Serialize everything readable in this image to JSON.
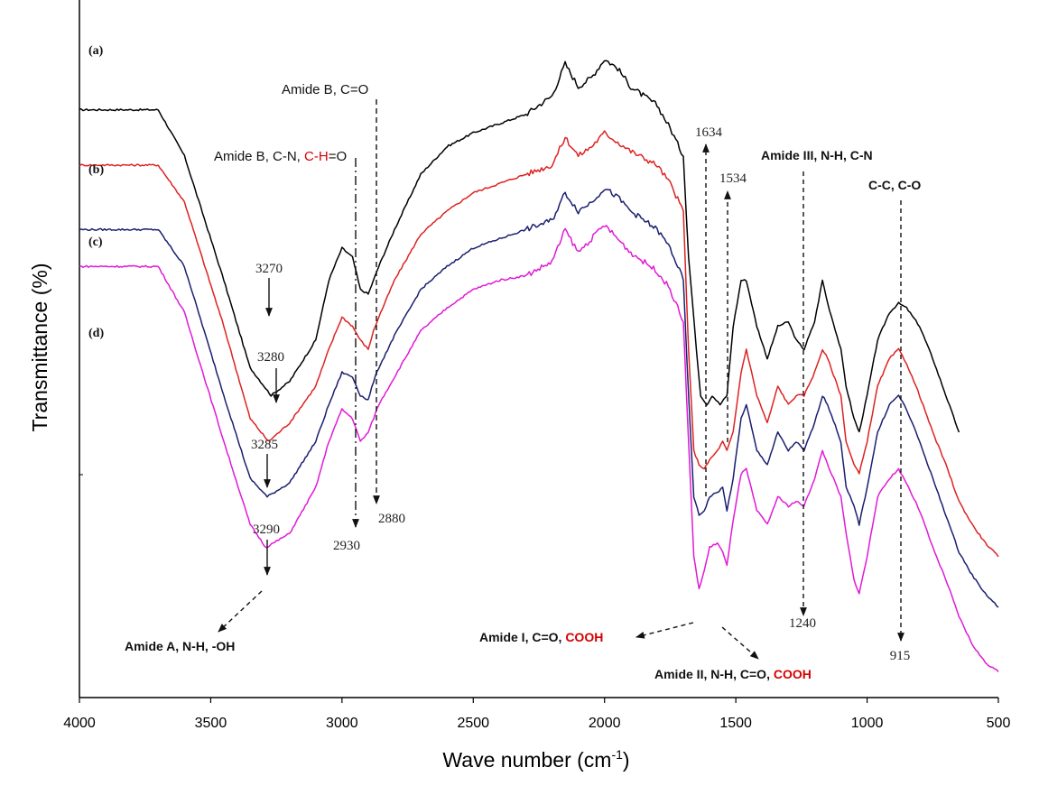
{
  "chart_data": {
    "type": "line",
    "xlabel": "Wave number (cm",
    "xlabel_sup": "-1",
    "xlabel_close": ")",
    "ylabel": "Transmittance (%)",
    "xlim": [
      4000,
      500
    ],
    "x_reversed": true,
    "xticks": [
      "4000",
      "3500",
      "3000",
      "2500",
      "2000",
      "1500",
      "1000",
      "500"
    ],
    "xtick_values": [
      4000,
      3500,
      3000,
      2500,
      2000,
      1500,
      1000,
      500
    ],
    "grid": false,
    "series": [
      {
        "name": "(a)",
        "color": "#000000",
        "x_range": [
          4000,
          650
        ],
        "points": [
          [
            4000,
            0.92
          ],
          [
            3700,
            0.92
          ],
          [
            3600,
            0.82
          ],
          [
            3450,
            0.55
          ],
          [
            3350,
            0.36
          ],
          [
            3270,
            0.3
          ],
          [
            3200,
            0.33
          ],
          [
            3100,
            0.42
          ],
          [
            3050,
            0.55
          ],
          [
            3000,
            0.62
          ],
          [
            2960,
            0.6
          ],
          [
            2930,
            0.53
          ],
          [
            2900,
            0.52
          ],
          [
            2880,
            0.55
          ],
          [
            2860,
            0.58
          ],
          [
            2800,
            0.66
          ],
          [
            2700,
            0.78
          ],
          [
            2600,
            0.84
          ],
          [
            2500,
            0.87
          ],
          [
            2400,
            0.89
          ],
          [
            2300,
            0.91
          ],
          [
            2200,
            0.95
          ],
          [
            2150,
            1.02
          ],
          [
            2100,
            0.97
          ],
          [
            2050,
            0.99
          ],
          [
            2000,
            1.03
          ],
          [
            1950,
            1.01
          ],
          [
            1900,
            0.97
          ],
          [
            1800,
            0.93
          ],
          [
            1750,
            0.88
          ],
          [
            1700,
            0.82
          ],
          [
            1680,
            0.6
          ],
          [
            1650,
            0.4
          ],
          [
            1634,
            0.3
          ],
          [
            1610,
            0.28
          ],
          [
            1590,
            0.3
          ],
          [
            1560,
            0.28
          ],
          [
            1534,
            0.3
          ],
          [
            1510,
            0.45
          ],
          [
            1480,
            0.55
          ],
          [
            1460,
            0.55
          ],
          [
            1420,
            0.45
          ],
          [
            1380,
            0.38
          ],
          [
            1340,
            0.45
          ],
          [
            1300,
            0.46
          ],
          [
            1270,
            0.42
          ],
          [
            1240,
            0.4
          ],
          [
            1200,
            0.46
          ],
          [
            1170,
            0.55
          ],
          [
            1150,
            0.5
          ],
          [
            1100,
            0.4
          ],
          [
            1080,
            0.32
          ],
          [
            1050,
            0.25
          ],
          [
            1030,
            0.22
          ],
          [
            1000,
            0.3
          ],
          [
            960,
            0.42
          ],
          [
            915,
            0.48
          ],
          [
            880,
            0.5
          ],
          [
            850,
            0.49
          ],
          [
            800,
            0.45
          ],
          [
            750,
            0.38
          ],
          [
            700,
            0.3
          ],
          [
            650,
            0.22
          ]
        ]
      },
      {
        "name": "(b)",
        "color": "#dd2222",
        "x_range": [
          4000,
          500
        ],
        "points": [
          [
            4000,
            0.8
          ],
          [
            3700,
            0.8
          ],
          [
            3600,
            0.72
          ],
          [
            3450,
            0.45
          ],
          [
            3350,
            0.25
          ],
          [
            3280,
            0.2
          ],
          [
            3200,
            0.24
          ],
          [
            3100,
            0.32
          ],
          [
            3050,
            0.4
          ],
          [
            3000,
            0.47
          ],
          [
            2960,
            0.45
          ],
          [
            2930,
            0.42
          ],
          [
            2900,
            0.4
          ],
          [
            2880,
            0.44
          ],
          [
            2860,
            0.47
          ],
          [
            2800,
            0.55
          ],
          [
            2700,
            0.65
          ],
          [
            2600,
            0.7
          ],
          [
            2500,
            0.74
          ],
          [
            2400,
            0.76
          ],
          [
            2300,
            0.78
          ],
          [
            2200,
            0.8
          ],
          [
            2150,
            0.86
          ],
          [
            2100,
            0.82
          ],
          [
            2050,
            0.84
          ],
          [
            2000,
            0.87
          ],
          [
            1950,
            0.85
          ],
          [
            1900,
            0.83
          ],
          [
            1800,
            0.8
          ],
          [
            1750,
            0.76
          ],
          [
            1700,
            0.7
          ],
          [
            1680,
            0.4
          ],
          [
            1660,
            0.18
          ],
          [
            1640,
            0.15
          ],
          [
            1620,
            0.14
          ],
          [
            1600,
            0.16
          ],
          [
            1570,
            0.18
          ],
          [
            1550,
            0.2
          ],
          [
            1534,
            0.18
          ],
          [
            1510,
            0.22
          ],
          [
            1480,
            0.35
          ],
          [
            1460,
            0.4
          ],
          [
            1420,
            0.3
          ],
          [
            1380,
            0.24
          ],
          [
            1340,
            0.32
          ],
          [
            1300,
            0.28
          ],
          [
            1270,
            0.3
          ],
          [
            1240,
            0.3
          ],
          [
            1200,
            0.35
          ],
          [
            1170,
            0.4
          ],
          [
            1150,
            0.38
          ],
          [
            1100,
            0.3
          ],
          [
            1080,
            0.2
          ],
          [
            1050,
            0.15
          ],
          [
            1030,
            0.13
          ],
          [
            1000,
            0.2
          ],
          [
            960,
            0.32
          ],
          [
            915,
            0.38
          ],
          [
            880,
            0.4
          ],
          [
            850,
            0.37
          ],
          [
            800,
            0.3
          ],
          [
            750,
            0.22
          ],
          [
            700,
            0.15
          ],
          [
            650,
            0.07
          ],
          [
            600,
            0.02
          ],
          [
            550,
            -0.02
          ],
          [
            500,
            -0.05
          ]
        ]
      },
      {
        "name": "(c)",
        "color": "#1a1f6e",
        "x_range": [
          4000,
          500
        ],
        "points": [
          [
            4000,
            0.66
          ],
          [
            3700,
            0.66
          ],
          [
            3600,
            0.58
          ],
          [
            3450,
            0.3
          ],
          [
            3350,
            0.12
          ],
          [
            3285,
            0.08
          ],
          [
            3200,
            0.11
          ],
          [
            3100,
            0.2
          ],
          [
            3050,
            0.28
          ],
          [
            3000,
            0.35
          ],
          [
            2960,
            0.34
          ],
          [
            2930,
            0.3
          ],
          [
            2900,
            0.29
          ],
          [
            2880,
            0.33
          ],
          [
            2860,
            0.36
          ],
          [
            2800,
            0.43
          ],
          [
            2700,
            0.53
          ],
          [
            2600,
            0.58
          ],
          [
            2500,
            0.62
          ],
          [
            2400,
            0.64
          ],
          [
            2300,
            0.66
          ],
          [
            2200,
            0.68
          ],
          [
            2150,
            0.74
          ],
          [
            2100,
            0.7
          ],
          [
            2050,
            0.72
          ],
          [
            2000,
            0.75
          ],
          [
            1950,
            0.73
          ],
          [
            1900,
            0.7
          ],
          [
            1800,
            0.66
          ],
          [
            1750,
            0.62
          ],
          [
            1700,
            0.55
          ],
          [
            1680,
            0.3
          ],
          [
            1660,
            0.08
          ],
          [
            1640,
            0.04
          ],
          [
            1620,
            0.05
          ],
          [
            1600,
            0.08
          ],
          [
            1570,
            0.09
          ],
          [
            1550,
            0.1
          ],
          [
            1534,
            0.05
          ],
          [
            1510,
            0.12
          ],
          [
            1480,
            0.25
          ],
          [
            1460,
            0.28
          ],
          [
            1420,
            0.18
          ],
          [
            1380,
            0.15
          ],
          [
            1340,
            0.22
          ],
          [
            1300,
            0.18
          ],
          [
            1270,
            0.2
          ],
          [
            1240,
            0.18
          ],
          [
            1200,
            0.24
          ],
          [
            1170,
            0.3
          ],
          [
            1150,
            0.28
          ],
          [
            1100,
            0.2
          ],
          [
            1080,
            0.1
          ],
          [
            1050,
            0.06
          ],
          [
            1030,
            0.02
          ],
          [
            1000,
            0.1
          ],
          [
            960,
            0.22
          ],
          [
            915,
            0.28
          ],
          [
            880,
            0.3
          ],
          [
            850,
            0.27
          ],
          [
            800,
            0.2
          ],
          [
            750,
            0.12
          ],
          [
            700,
            0.04
          ],
          [
            650,
            -0.04
          ],
          [
            600,
            -0.09
          ],
          [
            550,
            -0.13
          ],
          [
            500,
            -0.16
          ]
        ]
      },
      {
        "name": "(d)",
        "color": "#e01ad6",
        "x_range": [
          4000,
          500
        ],
        "points": [
          [
            4000,
            0.58
          ],
          [
            3700,
            0.58
          ],
          [
            3600,
            0.48
          ],
          [
            3450,
            0.2
          ],
          [
            3350,
            0.02
          ],
          [
            3290,
            -0.03
          ],
          [
            3200,
            0.0
          ],
          [
            3100,
            0.1
          ],
          [
            3050,
            0.2
          ],
          [
            3000,
            0.27
          ],
          [
            2960,
            0.25
          ],
          [
            2930,
            0.2
          ],
          [
            2900,
            0.22
          ],
          [
            2880,
            0.25
          ],
          [
            2860,
            0.28
          ],
          [
            2800,
            0.34
          ],
          [
            2700,
            0.44
          ],
          [
            2600,
            0.49
          ],
          [
            2500,
            0.53
          ],
          [
            2400,
            0.55
          ],
          [
            2300,
            0.56
          ],
          [
            2200,
            0.59
          ],
          [
            2150,
            0.66
          ],
          [
            2100,
            0.61
          ],
          [
            2050,
            0.64
          ],
          [
            2000,
            0.67
          ],
          [
            1950,
            0.64
          ],
          [
            1900,
            0.61
          ],
          [
            1800,
            0.57
          ],
          [
            1750,
            0.53
          ],
          [
            1700,
            0.46
          ],
          [
            1680,
            0.2
          ],
          [
            1660,
            -0.05
          ],
          [
            1640,
            -0.12
          ],
          [
            1620,
            -0.08
          ],
          [
            1600,
            -0.03
          ],
          [
            1570,
            -0.02
          ],
          [
            1550,
            -0.04
          ],
          [
            1534,
            -0.07
          ],
          [
            1510,
            0.03
          ],
          [
            1480,
            0.13
          ],
          [
            1460,
            0.14
          ],
          [
            1420,
            0.05
          ],
          [
            1380,
            0.02
          ],
          [
            1340,
            0.08
          ],
          [
            1300,
            0.06
          ],
          [
            1270,
            0.07
          ],
          [
            1240,
            0.06
          ],
          [
            1200,
            0.12
          ],
          [
            1170,
            0.18
          ],
          [
            1150,
            0.15
          ],
          [
            1100,
            0.08
          ],
          [
            1080,
            0.0
          ],
          [
            1050,
            -0.1
          ],
          [
            1030,
            -0.13
          ],
          [
            1000,
            -0.05
          ],
          [
            960,
            0.08
          ],
          [
            915,
            0.12
          ],
          [
            880,
            0.14
          ],
          [
            850,
            0.11
          ],
          [
            800,
            0.05
          ],
          [
            750,
            -0.03
          ],
          [
            700,
            -0.1
          ],
          [
            650,
            -0.18
          ],
          [
            600,
            -0.24
          ],
          [
            550,
            -0.28
          ],
          [
            500,
            -0.3
          ]
        ]
      }
    ],
    "peak_labels": [
      "3270",
      "3280",
      "3285",
      "3290",
      "2930",
      "2880",
      "1634",
      "1534",
      "1240",
      "915"
    ],
    "annotations": {
      "amide_b_co": "Amide B, C=O",
      "amide_b_cn_pre": "Amide B, C-N, ",
      "amide_b_cn_red": "C-H",
      "amide_b_cn_post": "=O",
      "amide_iii": "Amide III, N-H, C-N",
      "cc_co": "C-C, C-O",
      "amide_a": "Amide A, N-H, -OH",
      "amide_i_pre": "Amide I, C=O, ",
      "amide_i_red": "COOH",
      "amide_ii_pre": "Amide II, N-H, C=O, ",
      "amide_ii_red": "COOH"
    },
    "colors": {
      "highlight": "#d40000"
    }
  }
}
